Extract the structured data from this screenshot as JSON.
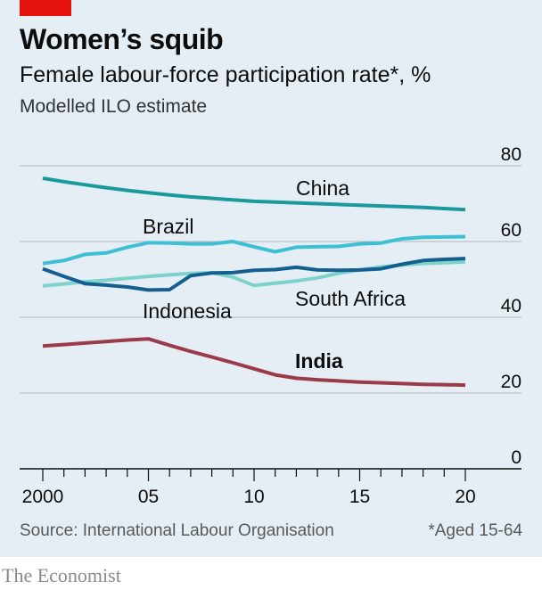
{
  "header": {
    "title": "Women’s squib",
    "subtitle": "Female labour-force participation rate*, %",
    "subtitle2": "Modelled ILO estimate"
  },
  "footer": {
    "source": "Source: International Labour Organisation",
    "note": "*Aged 15-64",
    "brand": "The Economist"
  },
  "colors": {
    "China": "#1a9a9d",
    "Brazil": "#3ebfd4",
    "South Africa": "#7dd3cc",
    "Indonesia": "#135f8f",
    "India": "#9b3b4a",
    "grid": "#b5b5b5",
    "accent": "#e3120b"
  },
  "chart_data": {
    "type": "line",
    "x": [
      2000,
      2001,
      2002,
      2003,
      2004,
      2005,
      2006,
      2007,
      2008,
      2009,
      2010,
      2011,
      2012,
      2013,
      2014,
      2015,
      2016,
      2017,
      2018,
      2019,
      2020
    ],
    "xticks": [
      2000,
      2005,
      2010,
      2015,
      2020
    ],
    "xtick_labels": [
      "2000",
      "05",
      "10",
      "15",
      "20"
    ],
    "ylim": [
      0,
      80
    ],
    "yticks": [
      0,
      20,
      40,
      60,
      80
    ],
    "grid": true,
    "series": [
      {
        "name": "China",
        "values": [
          76.7,
          75.8,
          75.0,
          74.2,
          73.5,
          72.9,
          72.3,
          71.8,
          71.4,
          71.0,
          70.6,
          70.4,
          70.2,
          70.0,
          69.8,
          69.6,
          69.4,
          69.2,
          69.0,
          68.7,
          68.4
        ]
      },
      {
        "name": "Brazil",
        "values": [
          54.2,
          55.0,
          56.6,
          57.0,
          58.5,
          59.7,
          59.6,
          59.4,
          59.4,
          60.0,
          58.6,
          57.3,
          58.5,
          58.6,
          58.7,
          59.4,
          59.6,
          60.7,
          61.1,
          61.2,
          61.3
        ]
      },
      {
        "name": "South Africa",
        "values": [
          48.3,
          48.8,
          49.4,
          49.8,
          50.3,
          50.8,
          51.2,
          51.6,
          51.8,
          50.6,
          48.4,
          49.0,
          49.6,
          50.4,
          51.6,
          52.5,
          53.3,
          53.8,
          54.2,
          54.4,
          54.6
        ]
      },
      {
        "name": "Indonesia",
        "values": [
          52.8,
          50.8,
          48.9,
          48.5,
          48.0,
          47.2,
          47.3,
          51.0,
          51.7,
          51.8,
          52.4,
          52.6,
          53.2,
          52.5,
          52.4,
          52.5,
          52.8,
          54.0,
          55.0,
          55.3,
          55.5
        ]
      },
      {
        "name": "India",
        "values": [
          32.4,
          32.8,
          33.2,
          33.6,
          34.0,
          34.3,
          32.6,
          31.0,
          29.5,
          28.0,
          26.4,
          24.8,
          23.9,
          23.5,
          23.2,
          22.9,
          22.7,
          22.5,
          22.3,
          22.2,
          22.1
        ]
      }
    ],
    "labels": [
      {
        "series": "China",
        "text": "China",
        "bold": false
      },
      {
        "series": "Brazil",
        "text": "Brazil",
        "bold": false
      },
      {
        "series": "South Africa",
        "text": "South Africa",
        "bold": false
      },
      {
        "series": "Indonesia",
        "text": "Indonesia",
        "bold": false
      },
      {
        "series": "India",
        "text": "India",
        "bold": true
      }
    ]
  }
}
